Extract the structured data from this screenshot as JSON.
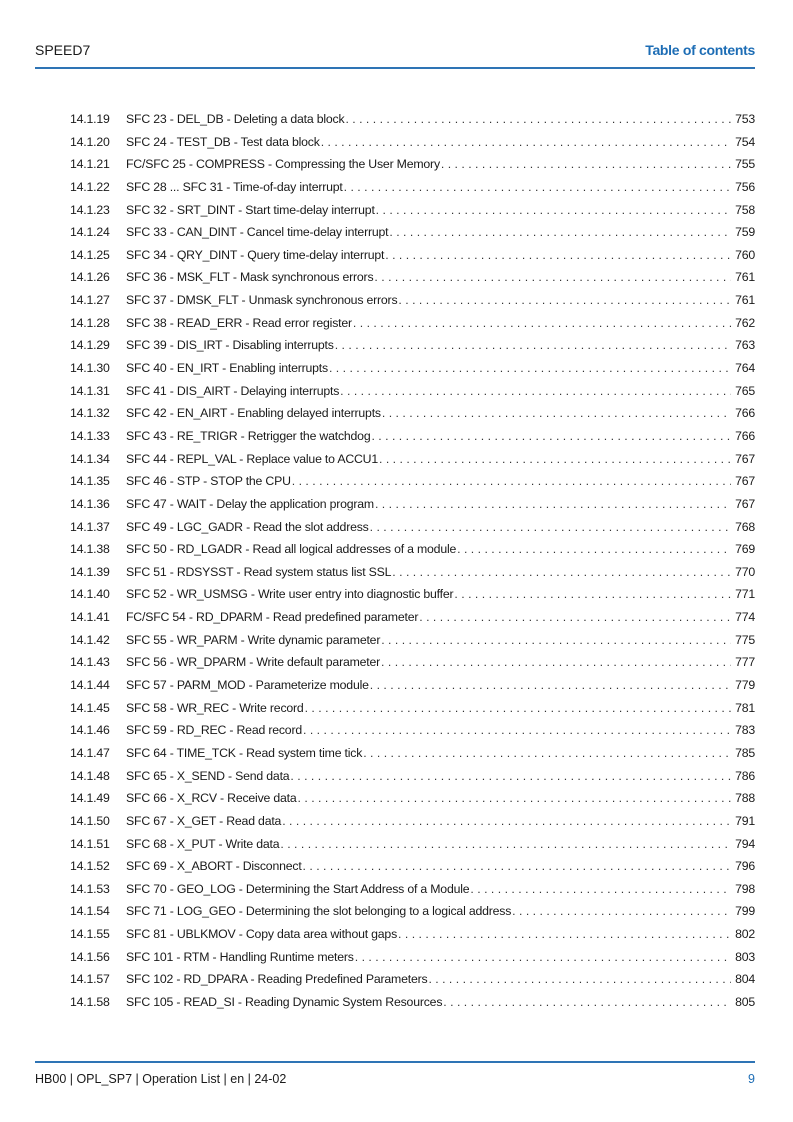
{
  "header": {
    "left": "SPEED7",
    "right": "Table of contents"
  },
  "colors": {
    "accent": "#1d6db5"
  },
  "entries": [
    {
      "num": "14.1.19",
      "title": "SFC 23 - DEL_DB - Deleting a data block",
      "page": "753"
    },
    {
      "num": "14.1.20",
      "title": "SFC 24 - TEST_DB - Test data block",
      "page": "754"
    },
    {
      "num": "14.1.21",
      "title": "FC/SFC 25 - COMPRESS - Compressing the User Memory",
      "page": "755"
    },
    {
      "num": "14.1.22",
      "title": "SFC 28 ... SFC 31 - Time-of-day interrupt",
      "page": "756"
    },
    {
      "num": "14.1.23",
      "title": "SFC 32 - SRT_DINT - Start time-delay interrupt",
      "page": "758"
    },
    {
      "num": "14.1.24",
      "title": "SFC 33 - CAN_DINT - Cancel time-delay interrupt",
      "page": "759"
    },
    {
      "num": "14.1.25",
      "title": "SFC 34 - QRY_DINT - Query time-delay interrupt",
      "page": "760"
    },
    {
      "num": "14.1.26",
      "title": "SFC 36 - MSK_FLT - Mask synchronous errors",
      "page": "761"
    },
    {
      "num": "14.1.27",
      "title": "SFC 37 - DMSK_FLT - Unmask synchronous errors",
      "page": "761"
    },
    {
      "num": "14.1.28",
      "title": "SFC 38 - READ_ERR - Read error register",
      "page": "762"
    },
    {
      "num": "14.1.29",
      "title": "SFC 39 - DIS_IRT - Disabling interrupts",
      "page": "763"
    },
    {
      "num": "14.1.30",
      "title": "SFC 40 - EN_IRT - Enabling interrupts",
      "page": "764"
    },
    {
      "num": "14.1.31",
      "title": "SFC 41 - DIS_AIRT - Delaying interrupts",
      "page": "765"
    },
    {
      "num": "14.1.32",
      "title": "SFC 42 - EN_AIRT - Enabling delayed interrupts",
      "page": "766"
    },
    {
      "num": "14.1.33",
      "title": "SFC 43 - RE_TRIGR - Retrigger the watchdog",
      "page": "766"
    },
    {
      "num": "14.1.34",
      "title": "SFC 44 - REPL_VAL - Replace value to ACCU1",
      "page": "767"
    },
    {
      "num": "14.1.35",
      "title": "SFC 46 - STP - STOP the CPU",
      "page": "767"
    },
    {
      "num": "14.1.36",
      "title": "SFC 47 - WAIT - Delay the application program",
      "page": "767"
    },
    {
      "num": "14.1.37",
      "title": "SFC 49 - LGC_GADR - Read the slot address",
      "page": "768"
    },
    {
      "num": "14.1.38",
      "title": "SFC 50 - RD_LGADR - Read all logical addresses of a module",
      "page": "769"
    },
    {
      "num": "14.1.39",
      "title": "SFC 51 - RDSYSST - Read system status list SSL",
      "page": "770"
    },
    {
      "num": "14.1.40",
      "title": "SFC 52 - WR_USMSG - Write user entry into diagnostic buffer",
      "page": "771"
    },
    {
      "num": "14.1.41",
      "title": "FC/SFC 54 - RD_DPARM - Read predefined parameter",
      "page": "774"
    },
    {
      "num": "14.1.42",
      "title": "SFC 55 - WR_PARM - Write dynamic parameter",
      "page": "775"
    },
    {
      "num": "14.1.43",
      "title": "SFC 56 - WR_DPARM - Write default parameter",
      "page": "777"
    },
    {
      "num": "14.1.44",
      "title": "SFC 57 - PARM_MOD - Parameterize module",
      "page": "779"
    },
    {
      "num": "14.1.45",
      "title": "SFC 58 - WR_REC - Write record",
      "page": "781"
    },
    {
      "num": "14.1.46",
      "title": "SFC 59 - RD_REC - Read record",
      "page": "783"
    },
    {
      "num": "14.1.47",
      "title": "SFC 64 - TIME_TCK - Read system time tick",
      "page": "785"
    },
    {
      "num": "14.1.48",
      "title": "SFC 65 - X_SEND - Send data",
      "page": "786"
    },
    {
      "num": "14.1.49",
      "title": "SFC 66 - X_RCV - Receive data",
      "page": "788"
    },
    {
      "num": "14.1.50",
      "title": "SFC 67 - X_GET - Read data",
      "page": "791"
    },
    {
      "num": "14.1.51",
      "title": "SFC 68 - X_PUT - Write data",
      "page": "794"
    },
    {
      "num": "14.1.52",
      "title": "SFC 69 - X_ABORT - Disconnect",
      "page": "796"
    },
    {
      "num": "14.1.53",
      "title": "SFC 70 - GEO_LOG - Determining the Start Address of a Module",
      "page": "798"
    },
    {
      "num": "14.1.54",
      "title": "SFC 71 - LOG_GEO - Determining the slot belonging to a logical address",
      "page": "799"
    },
    {
      "num": "14.1.55",
      "title": "SFC 81 - UBLKMOV - Copy data area without gaps",
      "page": "802"
    },
    {
      "num": "14.1.56",
      "title": "SFC 101 - RTM - Handling Runtime meters",
      "page": "803"
    },
    {
      "num": "14.1.57",
      "title": "SFC 102 - RD_DPARA - Reading Predefined Parameters",
      "page": "804"
    },
    {
      "num": "14.1.58",
      "title": "SFC 105 - READ_SI - Reading Dynamic System Resources",
      "page": "805"
    }
  ],
  "footer": {
    "left": "HB00 | OPL_SP7 | Operation List | en | 24-02",
    "page_number": "9"
  }
}
